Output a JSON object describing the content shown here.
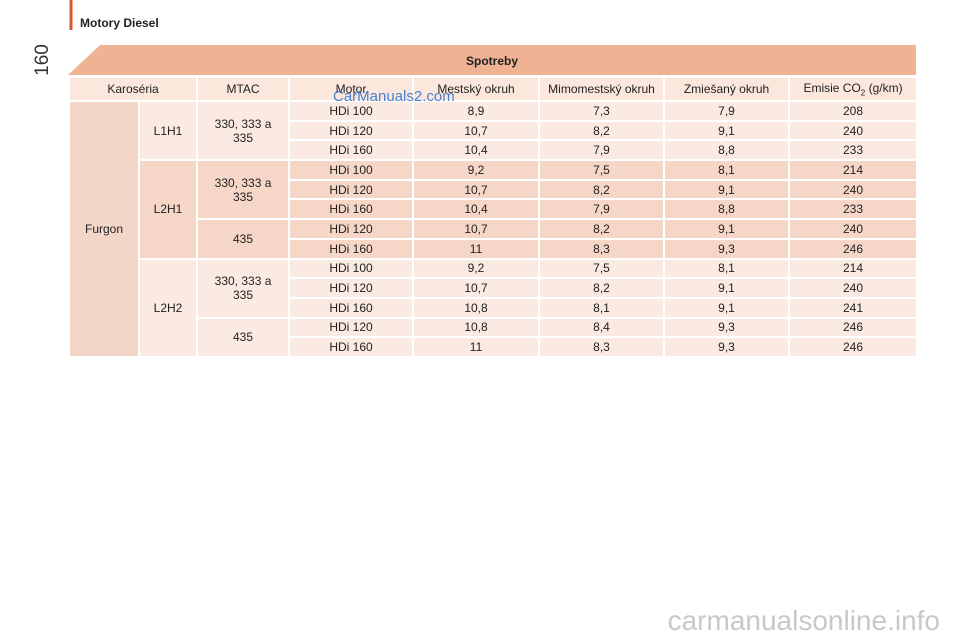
{
  "header": {
    "section": "Motory Diesel",
    "page_number": "160"
  },
  "table": {
    "title": "Spotreby",
    "columns": [
      "Karoséria",
      "MTAC",
      "Motor",
      "Mestský okruh",
      "Mimomestský okruh",
      "Zmiešaný okruh",
      {
        "text": "Emisie CO",
        "sub": "2",
        "unit": "(g/km)"
      }
    ],
    "groups": [
      {
        "body": "Furgon",
        "heights": [
          {
            "name": "L1H1",
            "mtac": [
              {
                "label": "330, 333 a 335",
                "rows": [
                  [
                    "HDi 100",
                    "8,9",
                    "7,3",
                    "7,9",
                    "208"
                  ],
                  [
                    "HDi 120",
                    "10,7",
                    "8,2",
                    "9,1",
                    "240"
                  ],
                  [
                    "HDi 160",
                    "10,4",
                    "7,9",
                    "8,8",
                    "233"
                  ]
                ]
              }
            ]
          },
          {
            "name": "L2H1",
            "mtac": [
              {
                "label": "330, 333 a 335",
                "rows": [
                  [
                    "HDi 100",
                    "9,2",
                    "7,5",
                    "8,1",
                    "214"
                  ],
                  [
                    "HDi 120",
                    "10,7",
                    "8,2",
                    "9,1",
                    "240"
                  ],
                  [
                    "HDi 160",
                    "10,4",
                    "7,9",
                    "8,8",
                    "233"
                  ]
                ]
              },
              {
                "label": "435",
                "rows": [
                  [
                    "HDi 120",
                    "10,7",
                    "8,2",
                    "9,1",
                    "240"
                  ],
                  [
                    "HDi 160",
                    "11",
                    "8,3",
                    "9,3",
                    "246"
                  ]
                ]
              }
            ]
          },
          {
            "name": "L2H2",
            "mtac": [
              {
                "label": "330, 333 a 335",
                "rows": [
                  [
                    "HDi 100",
                    "9,2",
                    "7,5",
                    "8,1",
                    "214"
                  ],
                  [
                    "HDi 120",
                    "10,7",
                    "8,2",
                    "9,1",
                    "240"
                  ],
                  [
                    "HDi 160",
                    "10,8",
                    "8,1",
                    "9,1",
                    "241"
                  ]
                ]
              },
              {
                "label": "435",
                "rows": [
                  [
                    "HDi 120",
                    "10,8",
                    "8,4",
                    "9,3",
                    "246"
                  ],
                  [
                    "HDi 160",
                    "11",
                    "8,3",
                    "9,3",
                    "246"
                  ]
                ]
              }
            ]
          }
        ]
      }
    ]
  },
  "watermarks": {
    "top": "CarManuals2.com",
    "bottom": "carmanualsonline.info"
  }
}
